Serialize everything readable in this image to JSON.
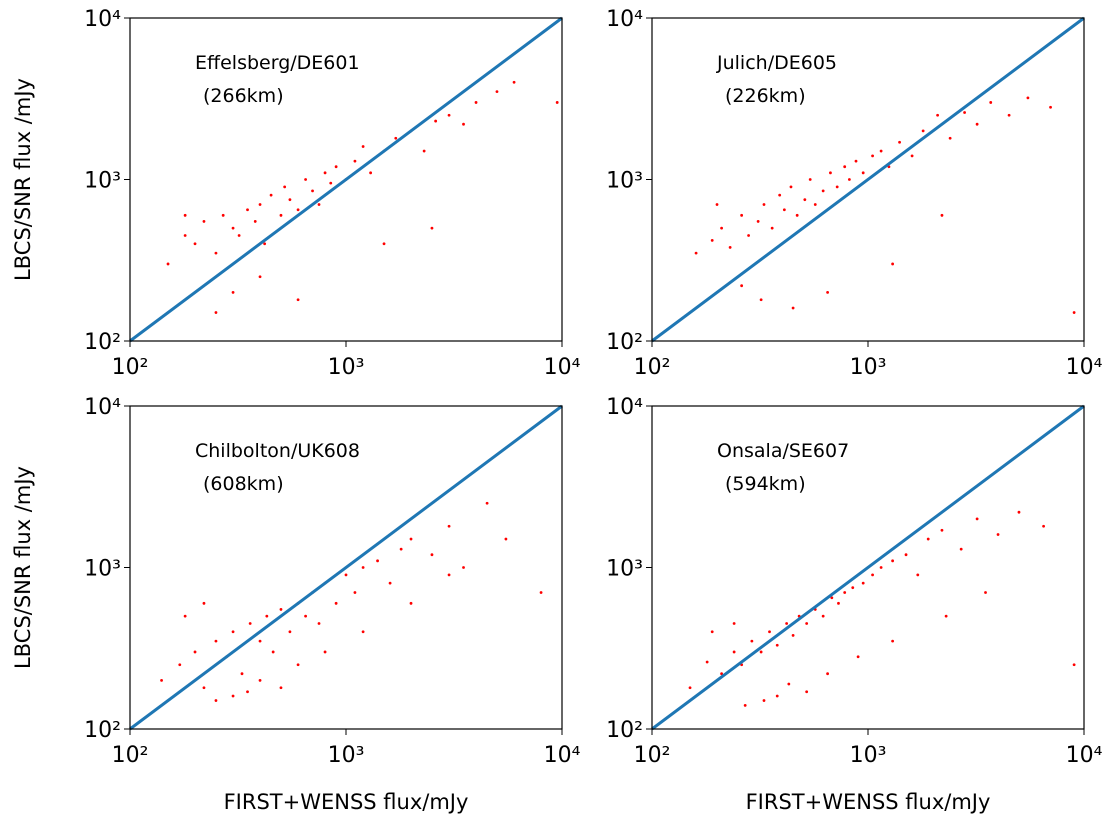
{
  "chart_data": [
    {
      "type": "scatter",
      "annotation": [
        "Effelsberg/DE601",
        "(266km)"
      ],
      "ylabel": "LBCS/SNR flux /mJy",
      "log_x": true,
      "log_y": true,
      "xlim": [
        100,
        10000
      ],
      "ylim": [
        100,
        10000
      ],
      "xticks": [
        {
          "value": 100,
          "label": "10²"
        },
        {
          "value": 1000,
          "label": "10³"
        },
        {
          "value": 10000,
          "label": "10⁴"
        }
      ],
      "yticks": [
        {
          "value": 100,
          "label": "10²"
        },
        {
          "value": 1000,
          "label": "10³"
        },
        {
          "value": 10000,
          "label": "10⁴"
        }
      ],
      "reference_line": {
        "x": [
          100,
          10000
        ],
        "y": [
          100,
          10000
        ],
        "color": "#1f77b4"
      },
      "series": [
        {
          "color": "#ff0000",
          "x": [
            150,
            180,
            200,
            220,
            250,
            270,
            300,
            320,
            350,
            380,
            400,
            420,
            450,
            500,
            520,
            550,
            600,
            650,
            700,
            750,
            800,
            850,
            900,
            1000,
            1100,
            1200,
            1300,
            1500,
            1700,
            2000,
            2300,
            2600,
            3000,
            3500,
            4000,
            5000,
            6000,
            9500,
            300,
            250,
            400,
            600,
            180,
            1500,
            2500
          ],
          "values": [
            300,
            450,
            400,
            550,
            350,
            600,
            500,
            450,
            650,
            550,
            700,
            400,
            800,
            600,
            900,
            750,
            650,
            1000,
            850,
            700,
            1100,
            950,
            1200,
            1000,
            1300,
            1600,
            1100,
            1500,
            1800,
            2000,
            1500,
            2300,
            2500,
            2200,
            3000,
            3500,
            4000,
            3000,
            200,
            150,
            250,
            180,
            600,
            400,
            500
          ]
        }
      ]
    },
    {
      "type": "scatter",
      "annotation": [
        "Julich/DE605",
        "(226km)"
      ],
      "log_x": true,
      "log_y": true,
      "xlim": [
        100,
        10000
      ],
      "ylim": [
        100,
        10000
      ],
      "xticks": [
        {
          "value": 100,
          "label": "10²"
        },
        {
          "value": 1000,
          "label": "10³"
        },
        {
          "value": 10000,
          "label": "10⁴"
        }
      ],
      "yticks": [
        {
          "value": 100,
          "label": "10²"
        },
        {
          "value": 1000,
          "label": "10³"
        },
        {
          "value": 10000,
          "label": "10⁴"
        }
      ],
      "reference_line": {
        "x": [
          100,
          10000
        ],
        "y": [
          100,
          10000
        ],
        "color": "#1f77b4"
      },
      "series": [
        {
          "color": "#ff0000",
          "x": [
            160,
            190,
            210,
            230,
            260,
            280,
            310,
            330,
            360,
            390,
            410,
            440,
            470,
            510,
            540,
            570,
            620,
            670,
            720,
            780,
            820,
            880,
            950,
            1050,
            1150,
            1250,
            1400,
            1600,
            1800,
            2100,
            2400,
            2800,
            3200,
            3700,
            4500,
            5500,
            7000,
            9000,
            320,
            260,
            450,
            650,
            200,
            1300,
            2200
          ],
          "values": [
            350,
            420,
            500,
            380,
            600,
            450,
            550,
            700,
            500,
            800,
            650,
            900,
            600,
            750,
            1000,
            700,
            850,
            1100,
            900,
            1200,
            1000,
            1300,
            1100,
            1400,
            1500,
            1200,
            1700,
            1400,
            2000,
            2500,
            1800,
            2600,
            2200,
            3000,
            2500,
            3200,
            2800,
            150,
            180,
            220,
            160,
            200,
            700,
            300,
            600
          ]
        }
      ]
    },
    {
      "type": "scatter",
      "annotation": [
        "Chilbolton/UK608",
        "(608km)"
      ],
      "ylabel": "LBCS/SNR flux /mJy",
      "xlabel": "FIRST+WENSS flux/mJy",
      "log_x": true,
      "log_y": true,
      "xlim": [
        100,
        10000
      ],
      "ylim": [
        100,
        10000
      ],
      "xticks": [
        {
          "value": 100,
          "label": "10²"
        },
        {
          "value": 1000,
          "label": "10³"
        },
        {
          "value": 10000,
          "label": "10⁴"
        }
      ],
      "yticks": [
        {
          "value": 100,
          "label": "10²"
        },
        {
          "value": 1000,
          "label": "10³"
        },
        {
          "value": 10000,
          "label": "10⁴"
        }
      ],
      "reference_line": {
        "x": [
          100,
          10000
        ],
        "y": [
          100,
          10000
        ],
        "color": "#1f77b4"
      },
      "series": [
        {
          "color": "#ff0000",
          "x": [
            140,
            170,
            200,
            220,
            250,
            280,
            300,
            330,
            360,
            400,
            430,
            460,
            500,
            550,
            600,
            650,
            700,
            750,
            800,
            900,
            1000,
            1100,
            1200,
            1400,
            1600,
            1800,
            2000,
            2500,
            3000,
            3500,
            4500,
            5500,
            8000,
            250,
            300,
            350,
            400,
            500,
            600,
            180,
            220,
            800,
            1200,
            2000,
            3000
          ],
          "values": [
            200,
            250,
            300,
            180,
            350,
            280,
            400,
            220,
            450,
            350,
            500,
            300,
            550,
            400,
            600,
            500,
            700,
            450,
            800,
            600,
            900,
            700,
            1000,
            1100,
            800,
            1300,
            1500,
            1200,
            1800,
            1000,
            2500,
            1500,
            700,
            150,
            160,
            170,
            200,
            180,
            250,
            500,
            600,
            300,
            400,
            600,
            900
          ]
        }
      ]
    },
    {
      "type": "scatter",
      "annotation": [
        "Onsala/SE607",
        "(594km)"
      ],
      "xlabel": "FIRST+WENSS flux/mJy",
      "log_x": true,
      "log_y": true,
      "xlim": [
        100,
        10000
      ],
      "ylim": [
        100,
        10000
      ],
      "xticks": [
        {
          "value": 100,
          "label": "10²"
        },
        {
          "value": 1000,
          "label": "10³"
        },
        {
          "value": 10000,
          "label": "10⁴"
        }
      ],
      "yticks": [
        {
          "value": 100,
          "label": "10²"
        },
        {
          "value": 1000,
          "label": "10³"
        },
        {
          "value": 10000,
          "label": "10⁴"
        }
      ],
      "reference_line": {
        "x": [
          100,
          10000
        ],
        "y": [
          100,
          10000
        ],
        "color": "#1f77b4"
      },
      "series": [
        {
          "color": "#ff0000",
          "x": [
            150,
            180,
            210,
            240,
            260,
            290,
            320,
            350,
            380,
            420,
            450,
            480,
            520,
            570,
            620,
            680,
            730,
            780,
            850,
            950,
            1050,
            1150,
            1300,
            1500,
            1700,
            1900,
            2200,
            2700,
            3200,
            4000,
            5000,
            6500,
            9000,
            270,
            330,
            380,
            430,
            520,
            650,
            190,
            240,
            900,
            1300,
            2300,
            3500
          ],
          "values": [
            180,
            260,
            220,
            300,
            250,
            350,
            300,
            400,
            330,
            450,
            380,
            500,
            450,
            550,
            500,
            650,
            600,
            700,
            750,
            800,
            900,
            1000,
            1100,
            1200,
            900,
            1500,
            1700,
            1300,
            2000,
            1600,
            2200,
            1800,
            250,
            140,
            150,
            160,
            190,
            170,
            220,
            400,
            450,
            280,
            350,
            500,
            700
          ]
        }
      ]
    }
  ]
}
